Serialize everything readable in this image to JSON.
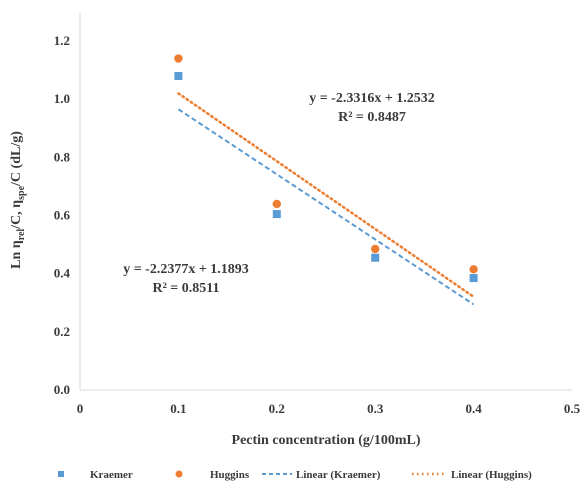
{
  "chart_data": {
    "type": "scatter",
    "xlabel": "Pectin concentration (g/100mL)",
    "ylabel_parts": [
      "Ln η",
      "rel",
      "/C, η",
      "spe",
      "/C (dL/g)"
    ],
    "xlim": [
      0,
      0.5
    ],
    "ylim": [
      0,
      1.3
    ],
    "x_ticks": [
      "0",
      "0.1",
      "0.2",
      "0.3",
      "0.4",
      "0.5"
    ],
    "y_ticks": [
      "0.0",
      "0.2",
      "0.4",
      "0.6",
      "0.8",
      "1.0",
      "1.2"
    ],
    "grid": false,
    "legend_position": "bottom",
    "series": [
      {
        "name": "Kraemer",
        "marker": "square",
        "color": "#5b9bd5",
        "x": [
          0.1,
          0.2,
          0.3,
          0.4
        ],
        "y": [
          1.08,
          0.605,
          0.455,
          0.385
        ]
      },
      {
        "name": "Huggins",
        "marker": "circle",
        "color": "#ed7d31",
        "x": [
          0.1,
          0.2,
          0.3,
          0.4
        ],
        "y": [
          1.14,
          0.64,
          0.485,
          0.415
        ]
      }
    ],
    "trendlines": [
      {
        "name": "Linear (Kraemer)",
        "color": "#5b9bd5",
        "style": "dashed",
        "slope": -2.2377,
        "intercept": 1.1893,
        "equation": "y = -2.2377x + 1.1893",
        "r2": "R² = 0.8511"
      },
      {
        "name": "Linear (Huggins)",
        "color": "#ed7d31",
        "style": "dotted",
        "slope": -2.3316,
        "intercept": 1.2532,
        "equation": "y = -2.3316x + 1.2532",
        "r2": "R² = 0.8487"
      }
    ]
  }
}
